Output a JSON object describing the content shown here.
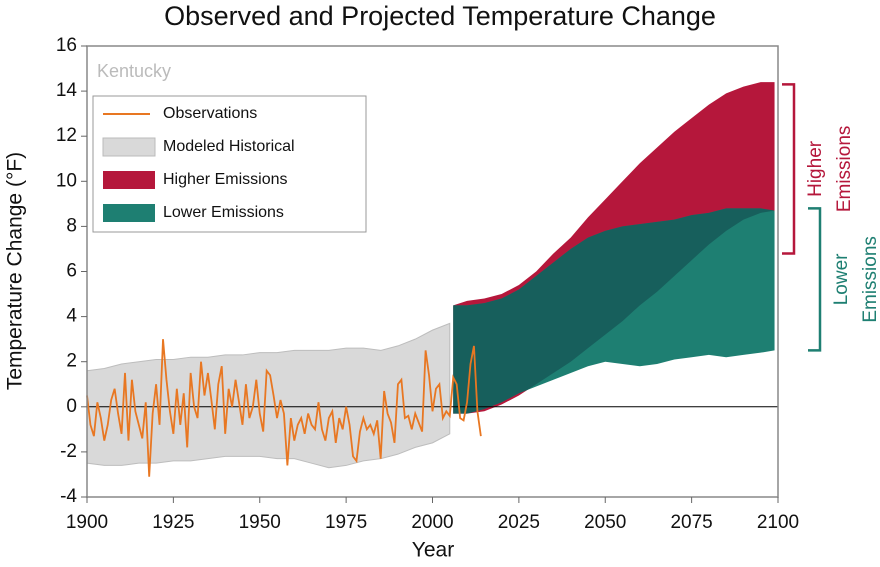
{
  "chart_data": {
    "type": "band-line",
    "title": "Observed and Projected Temperature Change",
    "region_label": "Kentucky",
    "ylabel": "Temperature Change (°F)",
    "xlabel": "Year",
    "xlim": [
      1900,
      2100
    ],
    "xticks": [
      1900,
      1925,
      1950,
      1975,
      2000,
      2025,
      2050,
      2075,
      2100
    ],
    "ylim": [
      -4,
      16
    ],
    "yticks": [
      -4,
      -2,
      0,
      2,
      4,
      6,
      8,
      10,
      12,
      14,
      16
    ],
    "legend": "upper left",
    "bands": [
      {
        "name": "Modeled Historical",
        "color": "#d9d9d9",
        "x": [
          1900,
          1905,
          1910,
          1915,
          1920,
          1925,
          1930,
          1935,
          1940,
          1945,
          1950,
          1955,
          1960,
          1965,
          1970,
          1975,
          1980,
          1985,
          1990,
          1995,
          2000,
          2005
        ],
        "upper": [
          1.6,
          1.7,
          1.9,
          2.0,
          2.1,
          2.1,
          2.2,
          2.2,
          2.3,
          2.3,
          2.4,
          2.4,
          2.5,
          2.5,
          2.5,
          2.6,
          2.6,
          2.5,
          2.7,
          3.0,
          3.4,
          3.7
        ],
        "lower": [
          -2.5,
          -2.6,
          -2.6,
          -2.5,
          -2.5,
          -2.4,
          -2.4,
          -2.3,
          -2.2,
          -2.2,
          -2.2,
          -2.3,
          -2.3,
          -2.5,
          -2.7,
          -2.6,
          -2.4,
          -2.3,
          -2.1,
          -1.8,
          -1.6,
          -1.2
        ]
      },
      {
        "name": "Higher Emissions",
        "color": "#b5173b",
        "x": [
          2006,
          2010,
          2015,
          2020,
          2025,
          2030,
          2035,
          2040,
          2045,
          2050,
          2055,
          2060,
          2065,
          2070,
          2075,
          2080,
          2085,
          2090,
          2095,
          2099
        ],
        "upper": [
          4.5,
          4.7,
          4.8,
          5.0,
          5.4,
          6.0,
          6.8,
          7.5,
          8.4,
          9.2,
          10.0,
          10.8,
          11.5,
          12.2,
          12.8,
          13.4,
          13.9,
          14.2,
          14.4,
          14.4
        ],
        "lower": [
          -0.3,
          -0.3,
          -0.2,
          0.1,
          0.5,
          1.0,
          1.5,
          2.0,
          2.6,
          3.2,
          3.8,
          4.5,
          5.1,
          5.8,
          6.5,
          7.2,
          7.8,
          8.3,
          8.6,
          8.7
        ]
      },
      {
        "name": "Lower Emissions",
        "color": "#1e7f72",
        "x": [
          2006,
          2010,
          2015,
          2020,
          2025,
          2030,
          2035,
          2040,
          2045,
          2050,
          2055,
          2060,
          2065,
          2070,
          2075,
          2080,
          2085,
          2090,
          2095,
          2099
        ],
        "upper": [
          4.5,
          4.5,
          4.6,
          4.8,
          5.2,
          5.8,
          6.4,
          7.0,
          7.5,
          7.8,
          8.0,
          8.1,
          8.2,
          8.3,
          8.5,
          8.6,
          8.8,
          8.8,
          8.8,
          8.7
        ],
        "lower": [
          -0.3,
          -0.3,
          -0.1,
          0.2,
          0.6,
          0.9,
          1.2,
          1.5,
          1.8,
          2.0,
          1.9,
          1.8,
          1.9,
          2.1,
          2.2,
          2.3,
          2.2,
          2.3,
          2.4,
          2.5
        ]
      }
    ],
    "overlap_color": "#175f5c",
    "series": [
      {
        "name": "Observations",
        "color": "#e87722",
        "x": [
          1900,
          1901,
          1902,
          1903,
          1904,
          1905,
          1906,
          1907,
          1908,
          1909,
          1910,
          1911,
          1912,
          1913,
          1914,
          1915,
          1916,
          1917,
          1918,
          1919,
          1920,
          1921,
          1922,
          1923,
          1924,
          1925,
          1926,
          1927,
          1928,
          1929,
          1930,
          1931,
          1932,
          1933,
          1934,
          1935,
          1936,
          1937,
          1938,
          1939,
          1940,
          1941,
          1942,
          1943,
          1944,
          1945,
          1946,
          1947,
          1948,
          1949,
          1950,
          1951,
          1952,
          1953,
          1954,
          1955,
          1956,
          1957,
          1958,
          1959,
          1960,
          1961,
          1962,
          1963,
          1964,
          1965,
          1966,
          1967,
          1968,
          1969,
          1970,
          1971,
          1972,
          1973,
          1974,
          1975,
          1976,
          1977,
          1978,
          1979,
          1980,
          1981,
          1982,
          1983,
          1984,
          1985,
          1986,
          1987,
          1988,
          1989,
          1990,
          1991,
          1992,
          1993,
          1994,
          1995,
          1996,
          1997,
          1998,
          1999,
          2000,
          2001,
          2002,
          2003,
          2004,
          2005,
          2006,
          2007,
          2008,
          2009,
          2010,
          2011,
          2012,
          2013,
          2014
        ],
        "values": [
          0.5,
          -0.8,
          -1.3,
          0.2,
          -0.5,
          -1.5,
          -0.8,
          0.3,
          0.8,
          -0.3,
          -1.2,
          1.5,
          -1.5,
          1.2,
          -0.2,
          -0.8,
          -1.4,
          0.2,
          -3.1,
          -0.3,
          1.0,
          -0.8,
          3.0,
          1.2,
          -0.2,
          -1.2,
          0.8,
          -0.8,
          0.6,
          -1.8,
          1.5,
          0.0,
          -0.5,
          2.0,
          0.5,
          1.5,
          0.3,
          -1.0,
          1.0,
          1.8,
          -1.2,
          0.8,
          0.0,
          1.2,
          0.2,
          -0.8,
          1.0,
          -0.5,
          0.0,
          1.2,
          -0.3,
          -1.1,
          1.6,
          1.4,
          0.5,
          -0.5,
          0.3,
          -0.3,
          -2.6,
          -0.5,
          -1.5,
          -0.8,
          -0.5,
          -1.2,
          -0.3,
          -0.8,
          -1.0,
          0.2,
          -1.0,
          -1.5,
          -0.5,
          -0.2,
          -1.6,
          -0.5,
          -1.0,
          0.0,
          -0.8,
          -2.2,
          -2.4,
          -1.1,
          -0.5,
          -1.0,
          -0.8,
          -1.2,
          -0.6,
          -2.3,
          0.7,
          -0.3,
          -0.7,
          -1.6,
          1.0,
          1.2,
          -0.5,
          -0.4,
          -1.0,
          -0.3,
          -0.7,
          -1.1,
          2.5,
          1.4,
          -0.2,
          0.8,
          1.0,
          -0.5,
          -0.2,
          -0.4,
          1.3,
          1.0,
          -0.5,
          -0.6,
          0.2,
          1.9,
          2.7,
          -0.2,
          -1.3
        ]
      }
    ],
    "annotations": [
      {
        "lines": [
          "Higher",
          "Emissions"
        ],
        "color": "#b5173b",
        "range": [
          6.8,
          14.3
        ]
      },
      {
        "lines": [
          "Lower",
          "Emissions"
        ],
        "color": "#1e7f72",
        "range": [
          2.5,
          8.8
        ]
      }
    ]
  }
}
